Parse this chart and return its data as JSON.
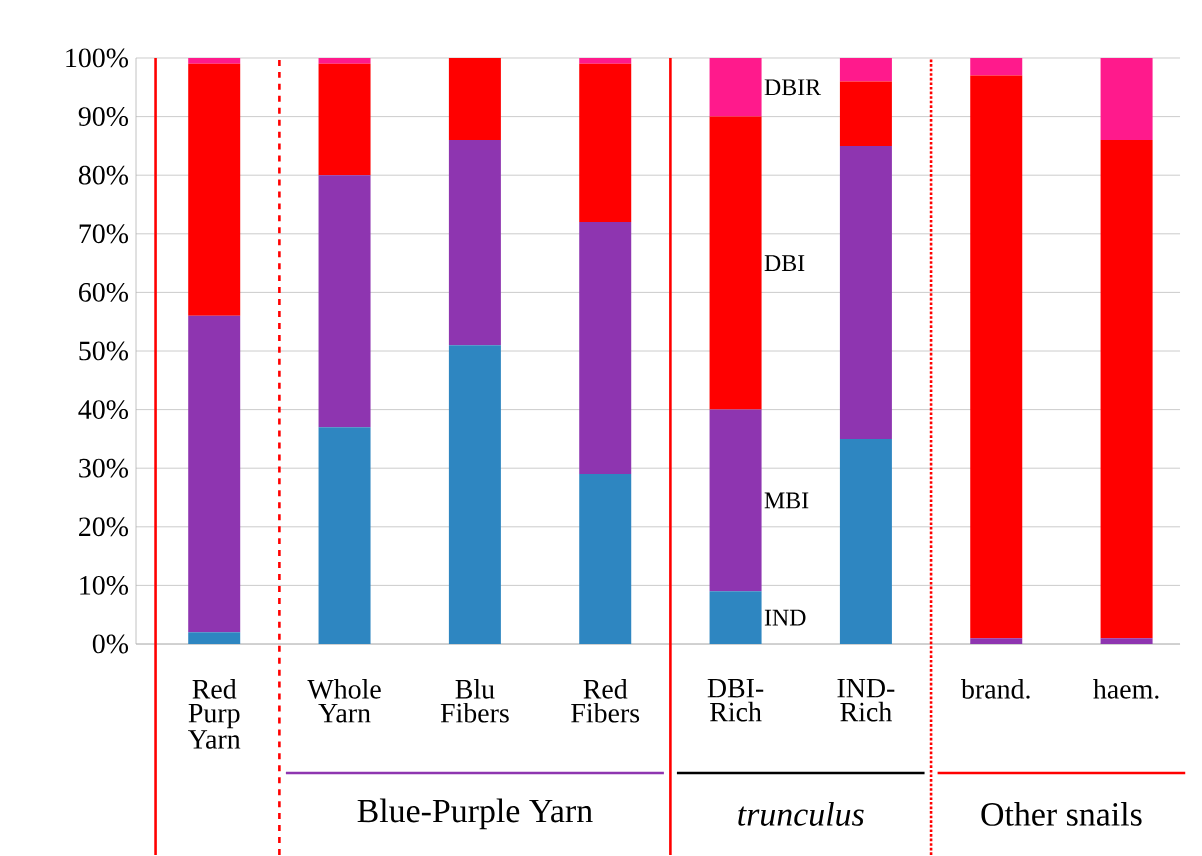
{
  "chart_data": {
    "type": "bar",
    "stacked": true,
    "categories": [
      "Red Purp Yarn",
      "Whole Yarn",
      "Blu Fibers",
      "Red Fibers",
      "DBI-Rich",
      "IND-Rich",
      "brand.",
      "haem."
    ],
    "series": [
      {
        "name": "IND",
        "color": "#2e86c1",
        "values": [
          2,
          37,
          51,
          29,
          9,
          35,
          0,
          0
        ]
      },
      {
        "name": "MBI",
        "color": "#8e35b0",
        "values": [
          54,
          43,
          35,
          43,
          31,
          50,
          1,
          1
        ]
      },
      {
        "name": "DBI",
        "color": "#ff0000",
        "values": [
          43,
          19,
          14,
          27,
          50,
          11,
          96,
          85
        ]
      },
      {
        "name": "DBIR",
        "color": "#ff1a8c",
        "values": [
          1,
          1,
          0,
          1,
          10,
          4,
          3,
          14
        ]
      }
    ],
    "ylim": [
      0,
      100
    ],
    "yticks": [
      {
        "value": 0,
        "label": "0%"
      },
      {
        "value": 10,
        "label": "10%"
      },
      {
        "value": 20,
        "label": "20%"
      },
      {
        "value": 30,
        "label": "30%"
      },
      {
        "value": 40,
        "label": "40%"
      },
      {
        "value": 50,
        "label": "50%"
      },
      {
        "value": 60,
        "label": "60%"
      },
      {
        "value": 70,
        "label": "70%"
      },
      {
        "value": 80,
        "label": "80%"
      },
      {
        "value": 90,
        "label": "90%"
      },
      {
        "value": 100,
        "label": "100%"
      }
    ],
    "grid": "y",
    "legend": false,
    "annotations": [
      "Blue-Purple Yarn",
      "trunculus",
      "Other snails"
    ]
  }
}
